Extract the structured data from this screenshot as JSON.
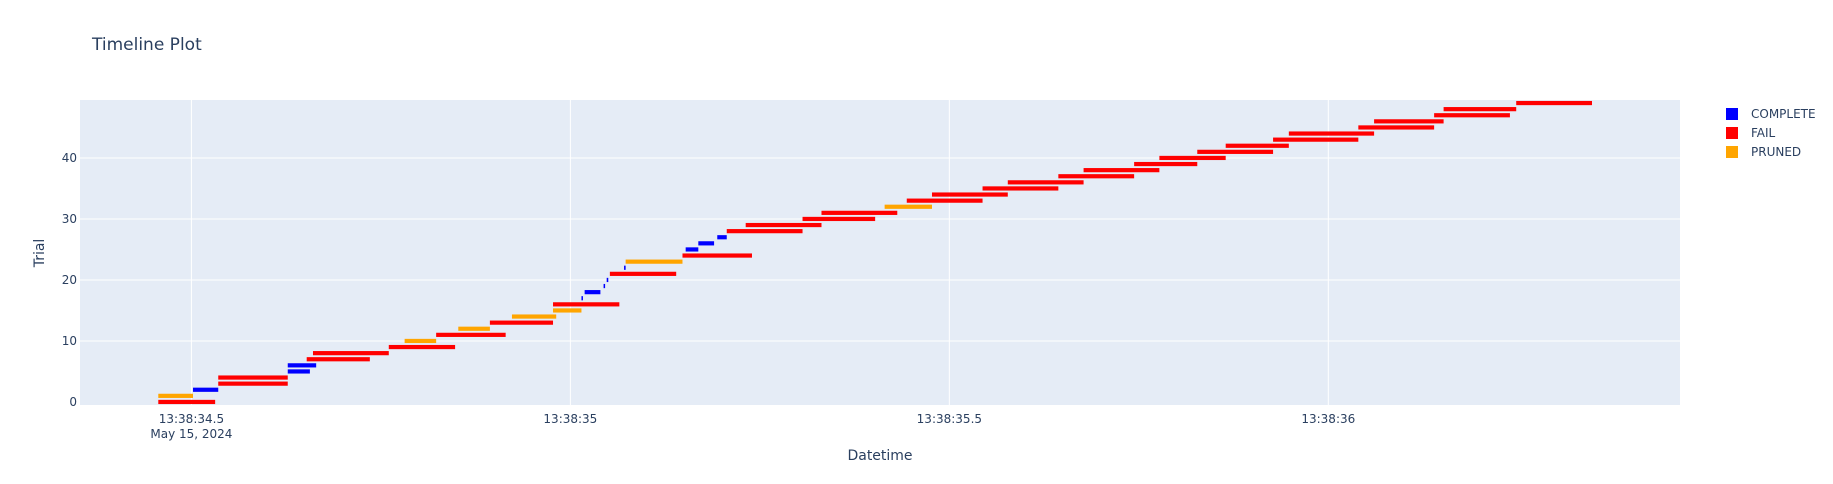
{
  "chart_data": {
    "type": "timeline",
    "title": "Timeline Plot",
    "xlabel": "Datetime",
    "ylabel": "Trial",
    "date_label": "May 15, 2024",
    "x_ticks": [
      {
        "t": 34.5,
        "label": "13:38:34.5"
      },
      {
        "t": 35.0,
        "label": "13:38:35"
      },
      {
        "t": 35.5,
        "label": "13:38:35.5"
      },
      {
        "t": 36.0,
        "label": "13:38:36"
      }
    ],
    "xlim_seconds": [
      34.353,
      36.464
    ],
    "ylim": [
      -0.5,
      49.5
    ],
    "y_ticks": [
      0,
      10,
      20,
      30,
      40
    ],
    "legend": [
      {
        "name": "COMPLETE",
        "color": "#0000ff"
      },
      {
        "name": "FAIL",
        "color": "#ff0000"
      },
      {
        "name": "PRUNED",
        "color": "#ffa500"
      }
    ],
    "trials": [
      {
        "trial": 0,
        "start": 34.4563,
        "end": 34.5313,
        "state": "FAIL"
      },
      {
        "trial": 1,
        "start": 34.4563,
        "end": 34.5021,
        "state": "PRUNED"
      },
      {
        "trial": 2,
        "start": 34.5021,
        "end": 34.5354,
        "state": "COMPLETE"
      },
      {
        "trial": 3,
        "start": 34.5354,
        "end": 34.6271,
        "state": "FAIL"
      },
      {
        "trial": 4,
        "start": 34.5354,
        "end": 34.6271,
        "state": "FAIL"
      },
      {
        "trial": 5,
        "start": 34.6271,
        "end": 34.6563,
        "state": "COMPLETE"
      },
      {
        "trial": 6,
        "start": 34.6271,
        "end": 34.6646,
        "state": "COMPLETE"
      },
      {
        "trial": 7,
        "start": 34.6521,
        "end": 34.7354,
        "state": "FAIL"
      },
      {
        "trial": 8,
        "start": 34.6604,
        "end": 34.7604,
        "state": "FAIL"
      },
      {
        "trial": 9,
        "start": 34.7604,
        "end": 34.8479,
        "state": "FAIL"
      },
      {
        "trial": 10,
        "start": 34.7813,
        "end": 34.8229,
        "state": "PRUNED"
      },
      {
        "trial": 11,
        "start": 34.8229,
        "end": 34.9146,
        "state": "FAIL"
      },
      {
        "trial": 12,
        "start": 34.8521,
        "end": 34.8938,
        "state": "PRUNED"
      },
      {
        "trial": 13,
        "start": 34.8938,
        "end": 34.9771,
        "state": "FAIL"
      },
      {
        "trial": 14,
        "start": 34.9229,
        "end": 34.9813,
        "state": "PRUNED"
      },
      {
        "trial": 15,
        "start": 34.9771,
        "end": 35.0146,
        "state": "PRUNED"
      },
      {
        "trial": 16,
        "start": 34.9771,
        "end": 35.0646,
        "state": "FAIL"
      },
      {
        "trial": 17,
        "start": 35.0146,
        "end": 35.0154,
        "state": "COMPLETE"
      },
      {
        "trial": 18,
        "start": 35.0188,
        "end": 35.0396,
        "state": "COMPLETE"
      },
      {
        "trial": 19,
        "start": 35.0438,
        "end": 35.0458,
        "state": "COMPLETE"
      },
      {
        "trial": 20,
        "start": 35.0479,
        "end": 35.05,
        "state": "COMPLETE"
      },
      {
        "trial": 21,
        "start": 35.0521,
        "end": 35.1396,
        "state": "FAIL"
      },
      {
        "trial": 22,
        "start": 35.0708,
        "end": 35.0729,
        "state": "COMPLETE"
      },
      {
        "trial": 23,
        "start": 35.0729,
        "end": 35.1479,
        "state": "PRUNED"
      },
      {
        "trial": 24,
        "start": 35.1479,
        "end": 35.2396,
        "state": "FAIL"
      },
      {
        "trial": 25,
        "start": 35.1521,
        "end": 35.1688,
        "state": "COMPLETE"
      },
      {
        "trial": 26,
        "start": 35.1688,
        "end": 35.1896,
        "state": "COMPLETE"
      },
      {
        "trial": 27,
        "start": 35.1938,
        "end": 35.2063,
        "state": "COMPLETE"
      },
      {
        "trial": 28,
        "start": 35.2063,
        "end": 35.3063,
        "state": "FAIL"
      },
      {
        "trial": 29,
        "start": 35.2313,
        "end": 35.3313,
        "state": "FAIL"
      },
      {
        "trial": 30,
        "start": 35.3063,
        "end": 35.4021,
        "state": "FAIL"
      },
      {
        "trial": 31,
        "start": 35.3313,
        "end": 35.4313,
        "state": "FAIL"
      },
      {
        "trial": 32,
        "start": 35.4146,
        "end": 35.4771,
        "state": "PRUNED"
      },
      {
        "trial": 33,
        "start": 35.4438,
        "end": 35.5438,
        "state": "FAIL"
      },
      {
        "trial": 34,
        "start": 35.4771,
        "end": 35.5771,
        "state": "FAIL"
      },
      {
        "trial": 35,
        "start": 35.5438,
        "end": 35.6438,
        "state": "FAIL"
      },
      {
        "trial": 36,
        "start": 35.5771,
        "end": 35.6771,
        "state": "FAIL"
      },
      {
        "trial": 37,
        "start": 35.6438,
        "end": 35.7438,
        "state": "FAIL"
      },
      {
        "trial": 38,
        "start": 35.6771,
        "end": 35.7771,
        "state": "FAIL"
      },
      {
        "trial": 39,
        "start": 35.7438,
        "end": 35.8271,
        "state": "FAIL"
      },
      {
        "trial": 40,
        "start": 35.7771,
        "end": 35.8646,
        "state": "FAIL"
      },
      {
        "trial": 41,
        "start": 35.8271,
        "end": 35.9271,
        "state": "FAIL"
      },
      {
        "trial": 42,
        "start": 35.8646,
        "end": 35.9479,
        "state": "FAIL"
      },
      {
        "trial": 43,
        "start": 35.9271,
        "end": 36.0396,
        "state": "FAIL"
      },
      {
        "trial": 44,
        "start": 35.9479,
        "end": 36.0604,
        "state": "FAIL"
      },
      {
        "trial": 45,
        "start": 36.0396,
        "end": 36.1396,
        "state": "FAIL"
      },
      {
        "trial": 46,
        "start": 36.0604,
        "end": 36.1521,
        "state": "FAIL"
      },
      {
        "trial": 47,
        "start": 36.1396,
        "end": 36.2396,
        "state": "FAIL"
      },
      {
        "trial": 48,
        "start": 36.1521,
        "end": 36.2479,
        "state": "FAIL"
      },
      {
        "trial": 49,
        "start": 36.2479,
        "end": 36.3479,
        "state": "FAIL"
      }
    ]
  }
}
